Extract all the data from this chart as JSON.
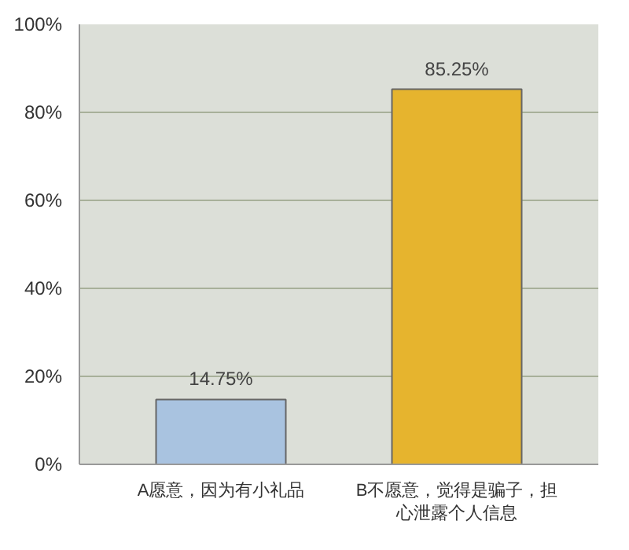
{
  "chart_data": {
    "type": "bar",
    "categories": [
      "A愿意，因为有小礼品",
      "B不愿意，觉得是骗子，担心泄露个人信息"
    ],
    "values": [
      14.75,
      85.25
    ],
    "colors": [
      "#a9c3e0",
      "#e6b42e"
    ],
    "value_labels": [
      "14.75%",
      "85.25%"
    ],
    "ylim": [
      0,
      100
    ],
    "yticks": [
      {
        "value": 0,
        "label": "0%"
      },
      {
        "value": 20,
        "label": "20%"
      },
      {
        "value": 40,
        "label": "40%"
      },
      {
        "value": 60,
        "label": "60%"
      },
      {
        "value": 80,
        "label": "80%"
      },
      {
        "value": 100,
        "label": "100%"
      }
    ],
    "grid": "y"
  }
}
